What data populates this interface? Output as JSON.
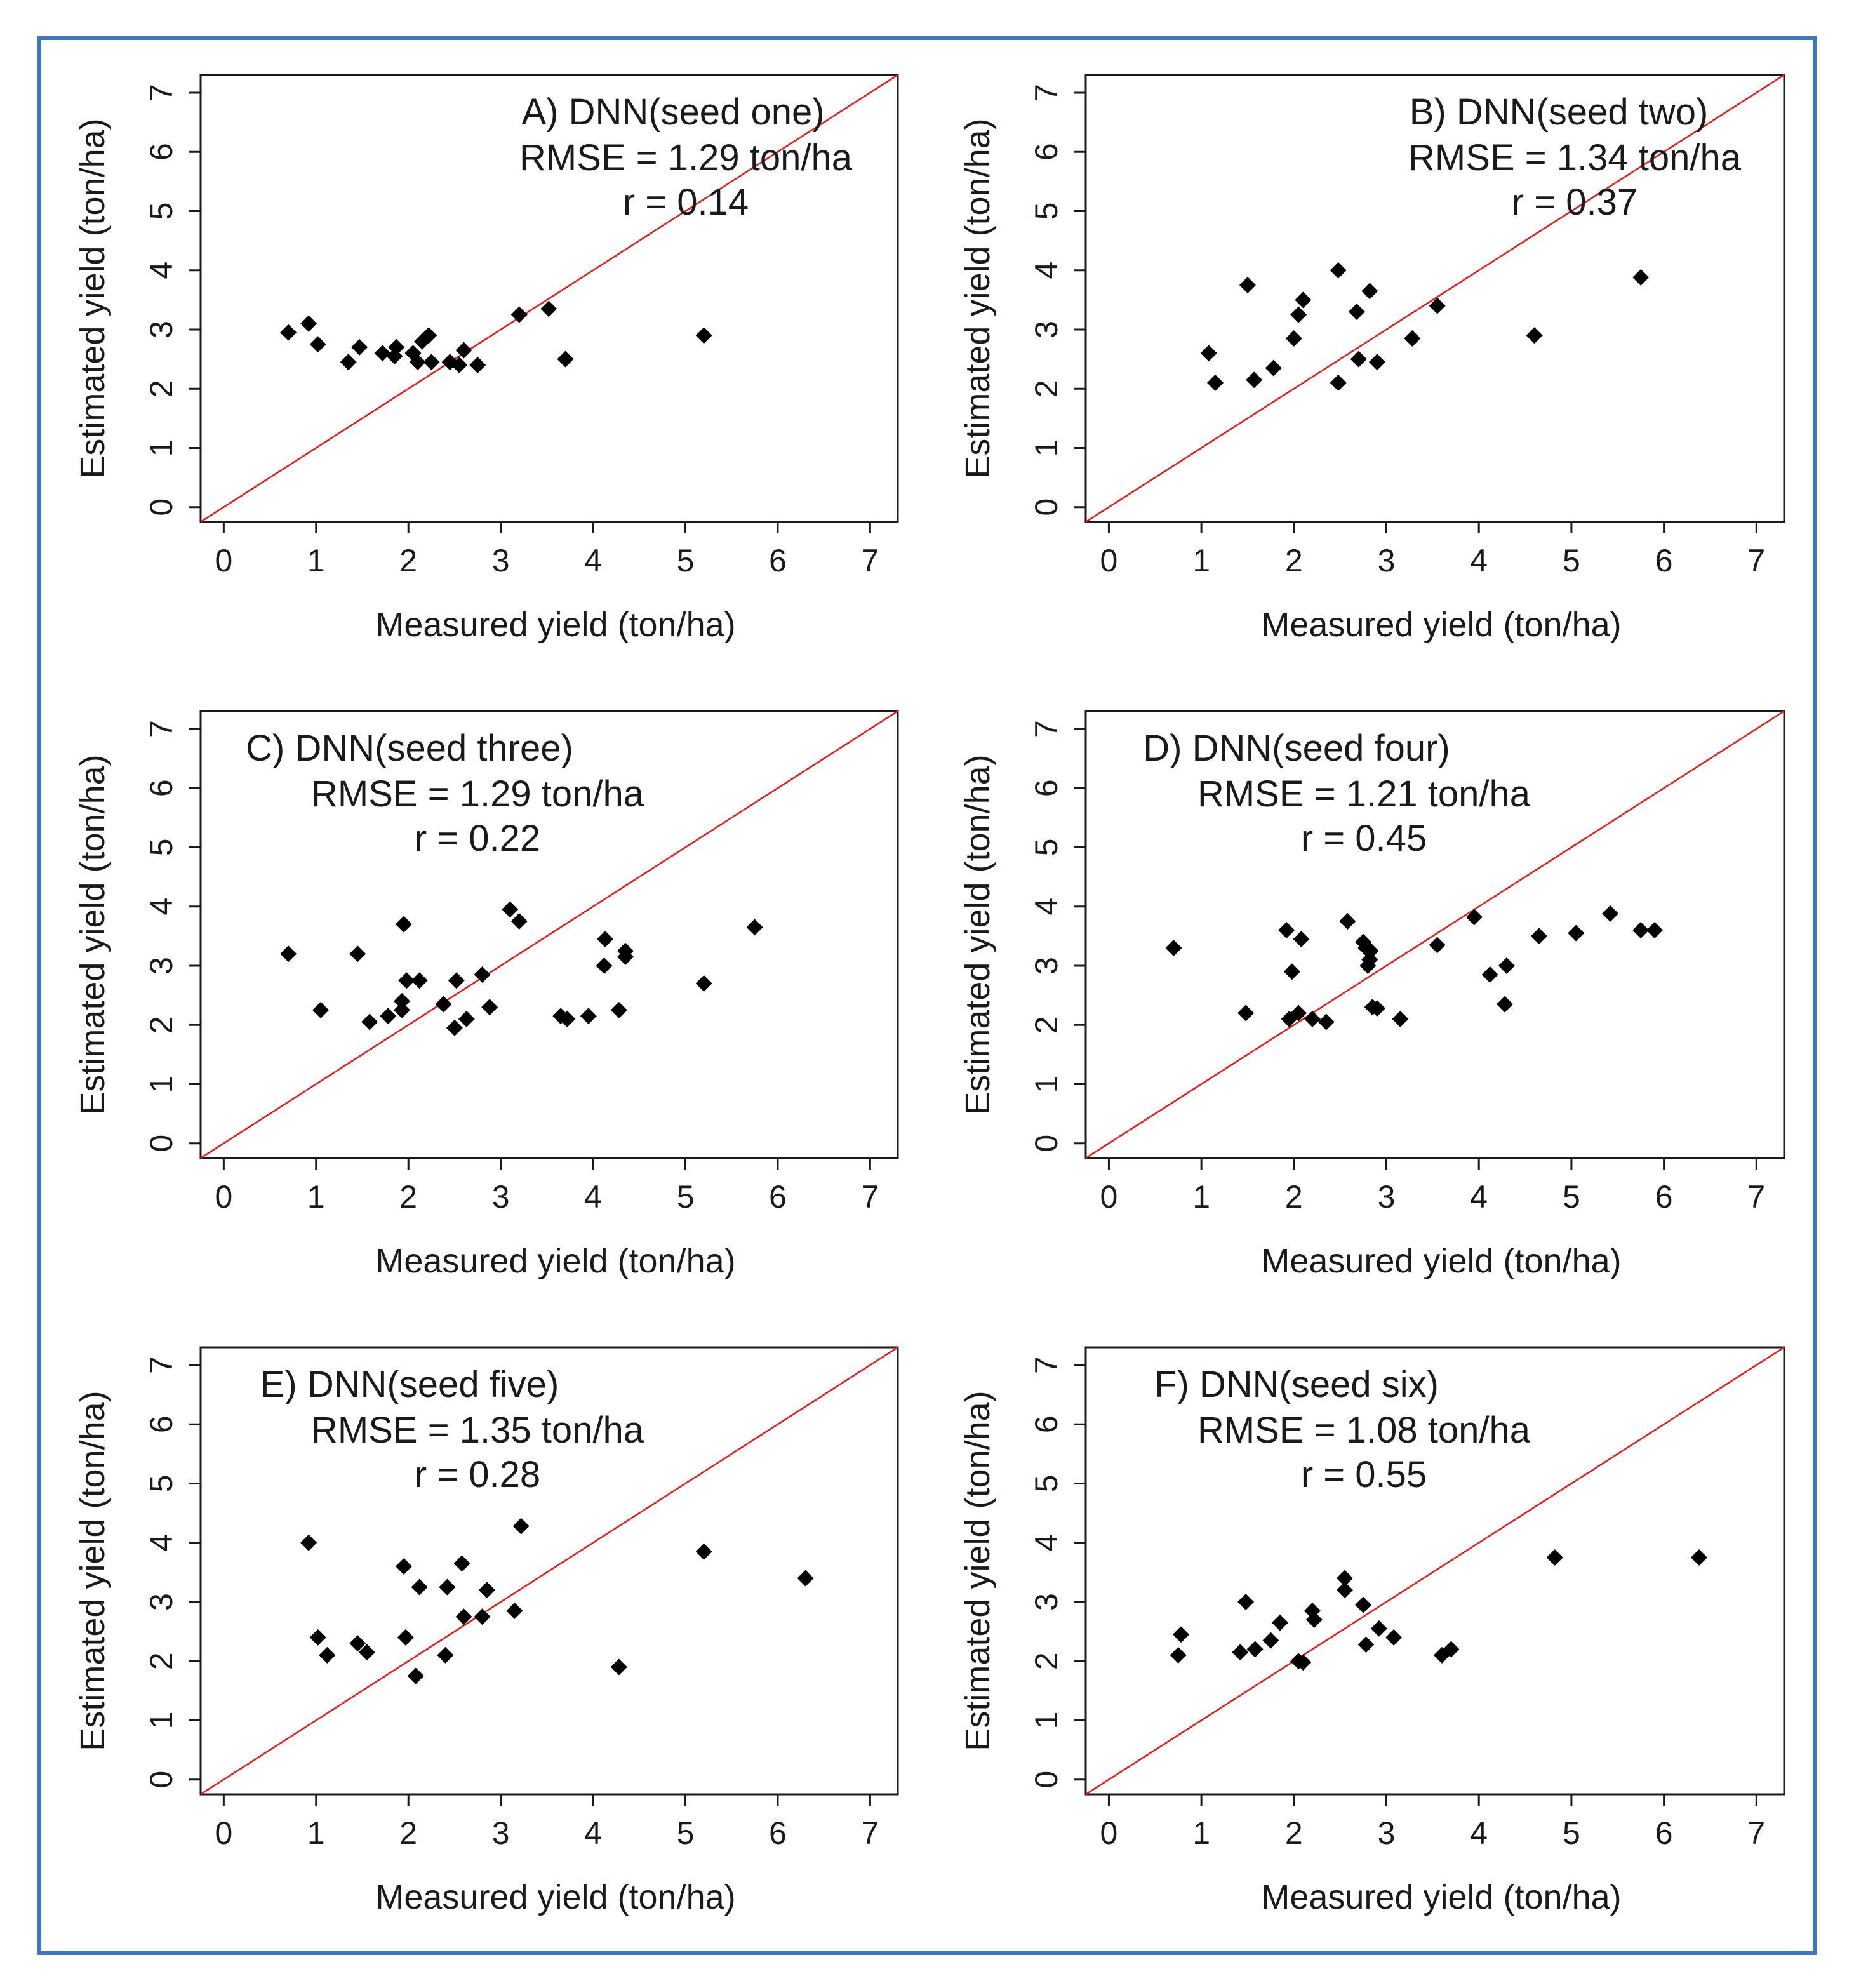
{
  "figure": {
    "border_color": "#3a78c4",
    "point_color": "#000000",
    "reference_line_color": "#e02020"
  },
  "chart_data": [
    {
      "type": "scatter",
      "title": "A) DNN(seed one)",
      "rmse_text": "RMSE = 1.29 ton/ha",
      "r_text": "r = 0.14",
      "xlabel": "Measured yield (ton/ha)",
      "ylabel": "Estimated yield (ton/ha)",
      "xlim": [
        -0.25,
        7.3
      ],
      "ylim": [
        -0.25,
        7.3
      ],
      "xticks": [
        0,
        1,
        2,
        3,
        4,
        5,
        6,
        7
      ],
      "yticks": [
        0,
        1,
        2,
        3,
        4,
        5,
        6,
        7
      ],
      "reference_line": "y = x",
      "points": [
        [
          0.7,
          2.95
        ],
        [
          0.92,
          3.1
        ],
        [
          1.02,
          2.75
        ],
        [
          1.35,
          2.45
        ],
        [
          1.47,
          2.7
        ],
        [
          1.72,
          2.6
        ],
        [
          1.85,
          2.55
        ],
        [
          1.87,
          2.7
        ],
        [
          2.05,
          2.6
        ],
        [
          2.1,
          2.45
        ],
        [
          2.15,
          2.8
        ],
        [
          2.22,
          2.9
        ],
        [
          2.25,
          2.45
        ],
        [
          2.45,
          2.45
        ],
        [
          2.55,
          2.4
        ],
        [
          2.6,
          2.65
        ],
        [
          2.75,
          2.4
        ],
        [
          3.2,
          3.25
        ],
        [
          3.52,
          3.35
        ],
        [
          3.7,
          2.5
        ],
        [
          5.2,
          2.9
        ]
      ]
    },
    {
      "type": "scatter",
      "title": "B) DNN(seed two)",
      "rmse_text": "RMSE = 1.34 ton/ha",
      "r_text": "r = 0.37",
      "xlabel": "Measured yield (ton/ha)",
      "ylabel": "Estimated yield (ton/ha)",
      "xlim": [
        -0.25,
        7.3
      ],
      "ylim": [
        -0.25,
        7.3
      ],
      "xticks": [
        0,
        1,
        2,
        3,
        4,
        5,
        6,
        7
      ],
      "yticks": [
        0,
        1,
        2,
        3,
        4,
        5,
        6,
        7
      ],
      "reference_line": "y = x",
      "points": [
        [
          1.08,
          2.6
        ],
        [
          1.15,
          2.1
        ],
        [
          1.5,
          3.75
        ],
        [
          1.57,
          2.15
        ],
        [
          1.78,
          2.35
        ],
        [
          2.0,
          2.85
        ],
        [
          2.05,
          3.25
        ],
        [
          2.1,
          3.5
        ],
        [
          2.48,
          2.1
        ],
        [
          2.48,
          4.0
        ],
        [
          2.68,
          3.3
        ],
        [
          2.7,
          2.5
        ],
        [
          2.82,
          3.65
        ],
        [
          2.9,
          2.45
        ],
        [
          3.28,
          2.85
        ],
        [
          3.55,
          3.4
        ],
        [
          4.6,
          2.9
        ],
        [
          5.75,
          3.88
        ]
      ]
    },
    {
      "type": "scatter",
      "title": "C) DNN(seed three)",
      "rmse_text": "RMSE = 1.29 ton/ha",
      "r_text": "r = 0.22",
      "xlabel": "Measured yield (ton/ha)",
      "ylabel": "Estimated yield (ton/ha)",
      "xlim": [
        -0.25,
        7.3
      ],
      "ylim": [
        -0.25,
        7.3
      ],
      "xticks": [
        0,
        1,
        2,
        3,
        4,
        5,
        6,
        7
      ],
      "yticks": [
        0,
        1,
        2,
        3,
        4,
        5,
        6,
        7
      ],
      "reference_line": "y = x",
      "points": [
        [
          0.7,
          3.2
        ],
        [
          1.05,
          2.25
        ],
        [
          1.45,
          3.2
        ],
        [
          1.58,
          2.05
        ],
        [
          1.78,
          2.15
        ],
        [
          1.93,
          2.25
        ],
        [
          1.93,
          2.4
        ],
        [
          1.95,
          3.7
        ],
        [
          1.98,
          2.75
        ],
        [
          2.12,
          2.75
        ],
        [
          2.38,
          2.35
        ],
        [
          2.5,
          1.95
        ],
        [
          2.52,
          2.75
        ],
        [
          2.63,
          2.1
        ],
        [
          2.8,
          2.85
        ],
        [
          2.88,
          2.3
        ],
        [
          3.1,
          3.95
        ],
        [
          3.2,
          3.75
        ],
        [
          3.65,
          2.15
        ],
        [
          3.72,
          2.1
        ],
        [
          3.95,
          2.15
        ],
        [
          4.12,
          3.0
        ],
        [
          4.13,
          3.45
        ],
        [
          4.28,
          2.25
        ],
        [
          4.35,
          3.25
        ],
        [
          4.35,
          3.15
        ],
        [
          5.2,
          2.7
        ],
        [
          5.75,
          3.65
        ]
      ]
    },
    {
      "type": "scatter",
      "title": "D) DNN(seed four)",
      "rmse_text": "RMSE = 1.21 ton/ha",
      "r_text": "r = 0.45",
      "xlabel": "Measured yield (ton/ha)",
      "ylabel": "Estimated yield (ton/ha)",
      "xlim": [
        -0.25,
        7.3
      ],
      "ylim": [
        -0.25,
        7.3
      ],
      "xticks": [
        0,
        1,
        2,
        3,
        4,
        5,
        6,
        7
      ],
      "yticks": [
        0,
        1,
        2,
        3,
        4,
        5,
        6,
        7
      ],
      "reference_line": "y = x",
      "points": [
        [
          0.7,
          3.3
        ],
        [
          1.48,
          2.2
        ],
        [
          1.92,
          3.6
        ],
        [
          1.95,
          2.1
        ],
        [
          1.98,
          2.9
        ],
        [
          2.05,
          2.2
        ],
        [
          2.08,
          3.45
        ],
        [
          2.2,
          2.1
        ],
        [
          2.35,
          2.05
        ],
        [
          2.58,
          3.75
        ],
        [
          2.75,
          3.4
        ],
        [
          2.78,
          3.3
        ],
        [
          2.8,
          3.0
        ],
        [
          2.82,
          3.1
        ],
        [
          2.83,
          3.25
        ],
        [
          2.85,
          2.3
        ],
        [
          2.9,
          2.28
        ],
        [
          3.15,
          2.1
        ],
        [
          3.55,
          3.35
        ],
        [
          3.95,
          3.82
        ],
        [
          4.12,
          2.85
        ],
        [
          4.3,
          3.0
        ],
        [
          4.28,
          2.35
        ],
        [
          4.65,
          3.5
        ],
        [
          5.05,
          3.55
        ],
        [
          5.42,
          3.88
        ],
        [
          5.75,
          3.6
        ],
        [
          5.9,
          3.6
        ]
      ]
    },
    {
      "type": "scatter",
      "title": "E) DNN(seed five)",
      "rmse_text": "RMSE = 1.35 ton/ha",
      "r_text": "r = 0.28",
      "xlabel": "Measured yield (ton/ha)",
      "ylabel": "Estimated yield (ton/ha)",
      "xlim": [
        -0.25,
        7.3
      ],
      "ylim": [
        -0.25,
        7.3
      ],
      "xticks": [
        0,
        1,
        2,
        3,
        4,
        5,
        6,
        7
      ],
      "yticks": [
        0,
        1,
        2,
        3,
        4,
        5,
        6,
        7
      ],
      "reference_line": "y = x",
      "points": [
        [
          0.92,
          4.0
        ],
        [
          1.02,
          2.4
        ],
        [
          1.12,
          2.1
        ],
        [
          1.45,
          2.3
        ],
        [
          1.55,
          2.15
        ],
        [
          1.95,
          3.6
        ],
        [
          1.97,
          2.4
        ],
        [
          2.08,
          1.75
        ],
        [
          2.12,
          3.25
        ],
        [
          2.4,
          2.1
        ],
        [
          2.42,
          3.25
        ],
        [
          2.58,
          3.65
        ],
        [
          2.6,
          2.75
        ],
        [
          2.8,
          2.75
        ],
        [
          2.85,
          3.2
        ],
        [
          3.15,
          2.85
        ],
        [
          3.22,
          4.28
        ],
        [
          4.28,
          1.9
        ],
        [
          5.2,
          3.85
        ],
        [
          6.3,
          3.4
        ]
      ]
    },
    {
      "type": "scatter",
      "title": "F) DNN(seed six)",
      "rmse_text": "RMSE = 1.08 ton/ha",
      "r_text": "r = 0.55",
      "xlabel": "Measured yield (ton/ha)",
      "ylabel": "Estimated yield (ton/ha)",
      "xlim": [
        -0.25,
        7.3
      ],
      "ylim": [
        -0.25,
        7.3
      ],
      "xticks": [
        0,
        1,
        2,
        3,
        4,
        5,
        6,
        7
      ],
      "yticks": [
        0,
        1,
        2,
        3,
        4,
        5,
        6,
        7
      ],
      "reference_line": "y = x",
      "points": [
        [
          0.75,
          2.1
        ],
        [
          0.78,
          2.45
        ],
        [
          1.42,
          2.15
        ],
        [
          1.48,
          3.0
        ],
        [
          1.58,
          2.2
        ],
        [
          1.75,
          2.35
        ],
        [
          1.85,
          2.65
        ],
        [
          2.05,
          2.0
        ],
        [
          2.1,
          1.98
        ],
        [
          2.2,
          2.85
        ],
        [
          2.22,
          2.7
        ],
        [
          2.55,
          3.4
        ],
        [
          2.55,
          3.2
        ],
        [
          2.75,
          2.95
        ],
        [
          2.78,
          2.28
        ],
        [
          2.92,
          2.55
        ],
        [
          3.08,
          2.4
        ],
        [
          3.6,
          2.1
        ],
        [
          3.7,
          2.2
        ],
        [
          4.82,
          3.75
        ],
        [
          6.38,
          3.75
        ]
      ]
    }
  ]
}
